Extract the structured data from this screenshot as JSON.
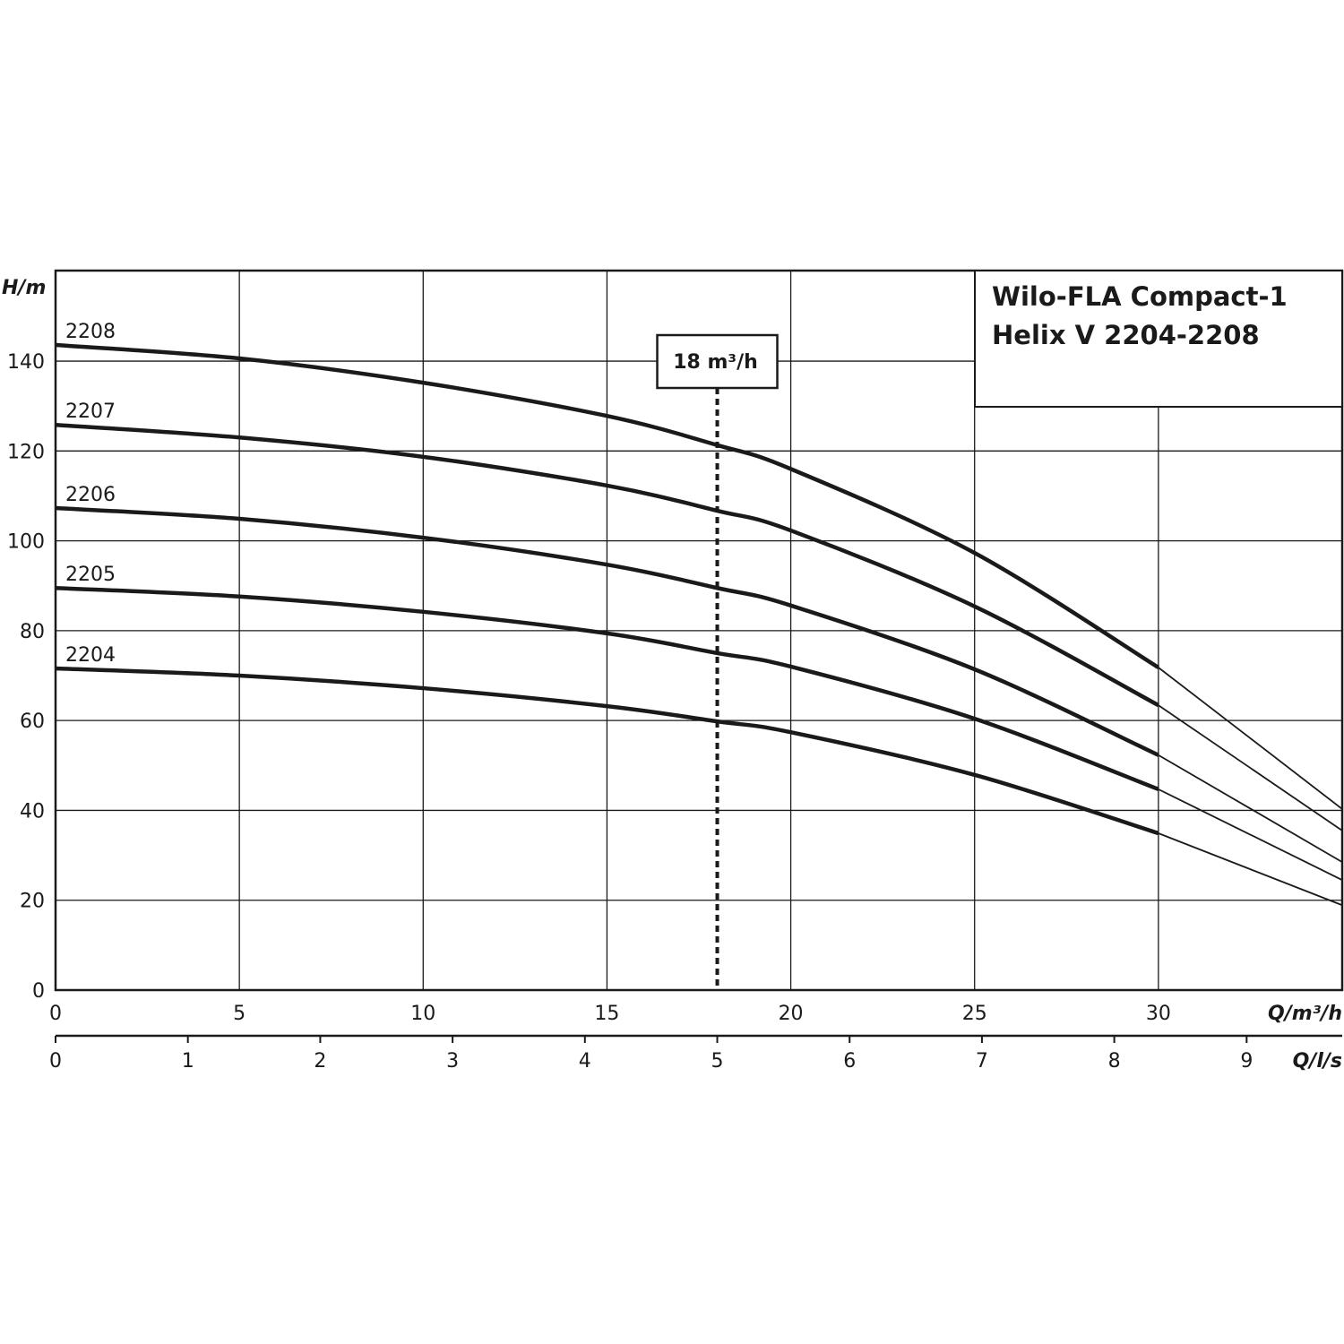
{
  "chart_data": {
    "type": "line",
    "title_lines": [
      "Wilo-FLA Compact-1",
      "Helix V 2204-2208"
    ],
    "ylabel": "H/m",
    "xlabel": "Q/m³/h",
    "x2label": "Q/l/s",
    "xlim": [
      0,
      35
    ],
    "ylim": [
      0,
      160
    ],
    "x_ticks": [
      0,
      5,
      10,
      15,
      20,
      25,
      30
    ],
    "y_ticks": [
      0,
      20,
      40,
      60,
      80,
      100,
      120,
      140
    ],
    "x2_ticks": [
      0,
      1,
      2,
      3,
      4,
      5,
      6,
      7,
      8,
      9
    ],
    "grid": true,
    "annotation": {
      "label": "18 m³/h",
      "x": 18
    },
    "thick_until_x": 30,
    "x": [
      0,
      5,
      10,
      15,
      18,
      20,
      25,
      30,
      35
    ],
    "series": [
      {
        "name": "2208",
        "values": [
          143.6,
          140.6,
          135.2,
          127.8,
          121.3,
          116.0,
          97.3,
          71.8,
          40.3
        ]
      },
      {
        "name": "2207",
        "values": [
          125.8,
          123.0,
          118.7,
          112.3,
          106.7,
          102.3,
          85.4,
          63.4,
          35.5
        ]
      },
      {
        "name": "2206",
        "values": [
          107.3,
          104.9,
          100.7,
          94.7,
          89.5,
          85.6,
          71.4,
          52.3,
          28.5
        ]
      },
      {
        "name": "2205",
        "values": [
          89.5,
          87.6,
          84.2,
          79.4,
          75.0,
          72.0,
          60.4,
          44.7,
          24.5
        ]
      },
      {
        "name": "2204",
        "values": [
          71.6,
          70.0,
          67.2,
          63.2,
          59.8,
          57.4,
          47.9,
          34.9,
          18.9
        ]
      }
    ],
    "line_color": "#1a1a1a"
  }
}
